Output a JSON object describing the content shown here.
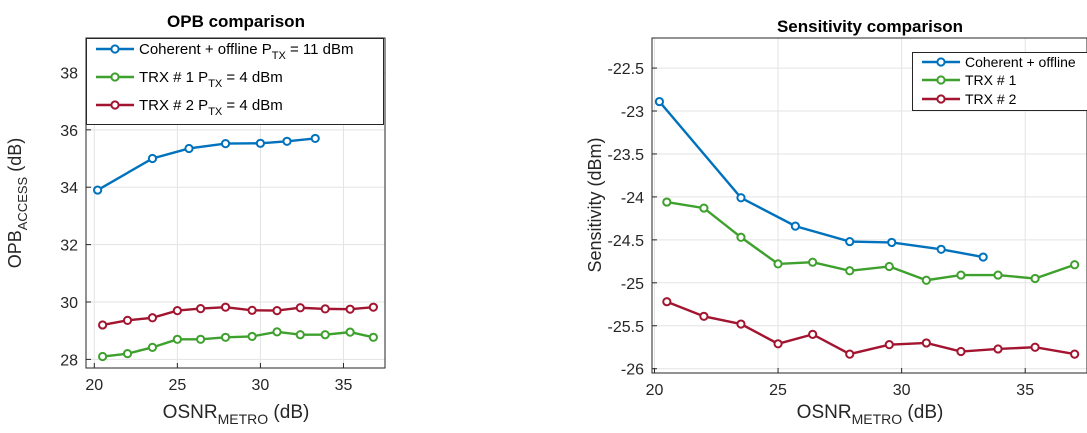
{
  "colors": {
    "blue": "#0072BD",
    "green": "#3EA02D",
    "red": "#A2142F"
  },
  "chart_data": [
    {
      "type": "line",
      "title": "OPB comparison",
      "xlabel": {
        "main": "OSNR",
        "sub": "METRO",
        "suffix": " (dB)"
      },
      "ylabel": {
        "main": "OPB",
        "sub": "ACCESS",
        "suffix": " (dB)"
      },
      "xlim": [
        19.5,
        37.5
      ],
      "ylim": [
        27.7,
        39.2
      ],
      "xticks": [
        "20",
        "25",
        "30",
        "35"
      ],
      "xtick_values": [
        20,
        25,
        30,
        35
      ],
      "yticks": [
        "28",
        "30",
        "32",
        "34",
        "36",
        "38"
      ],
      "ytick_values": [
        28,
        30,
        32,
        34,
        36,
        38
      ],
      "grid": true,
      "legend_position": "top-left",
      "series": [
        {
          "name": "Coherent + offline P",
          "name_sub": "TX",
          "name_suffix": " = 11 dBm",
          "color": "blue",
          "x": [
            20.2,
            23.5,
            25.7,
            27.9,
            30.0,
            31.6,
            33.3
          ],
          "y": [
            33.9,
            35.0,
            35.35,
            35.52,
            35.53,
            35.6,
            35.7
          ]
        },
        {
          "name": "TRX # 1 P",
          "name_sub": "TX",
          "name_suffix": " = 4 dBm",
          "color": "green",
          "x": [
            20.5,
            22.0,
            23.5,
            25.0,
            26.4,
            27.9,
            29.5,
            31.0,
            32.4,
            33.9,
            35.4,
            36.8
          ],
          "y": [
            28.1,
            28.2,
            28.42,
            28.7,
            28.7,
            28.77,
            28.8,
            28.96,
            28.86,
            28.86,
            28.95,
            28.77
          ]
        },
        {
          "name": "TRX # 2  P",
          "name_sub": "TX",
          "name_suffix": " = 4 dBm",
          "color": "red",
          "x": [
            20.5,
            22.0,
            23.5,
            25.0,
            26.4,
            27.9,
            29.5,
            31.0,
            32.4,
            33.9,
            35.4,
            36.8
          ],
          "y": [
            29.2,
            29.36,
            29.45,
            29.7,
            29.77,
            29.82,
            29.71,
            29.7,
            29.8,
            29.76,
            29.75,
            29.82
          ]
        }
      ]
    },
    {
      "type": "line",
      "title": "Sensitivity comparison",
      "xlabel": {
        "main": "OSNR",
        "sub": "METRO",
        "suffix": " (dB)"
      },
      "ylabel": {
        "main": "Sensitivity (dBm)",
        "sub": "",
        "suffix": ""
      },
      "xlim": [
        19.9,
        37.5
      ],
      "ylim": [
        -26.05,
        -22.15
      ],
      "xticks": [
        "20",
        "25",
        "30",
        "35"
      ],
      "xtick_values": [
        20,
        25,
        30,
        35
      ],
      "yticks": [
        "-22.5",
        "-23",
        "-23.5",
        "-24",
        "-24.5",
        "-25",
        "-25.5",
        "-26"
      ],
      "ytick_values": [
        -22.5,
        -23,
        -23.5,
        -24,
        -24.5,
        -25,
        -25.5,
        -26
      ],
      "grid": true,
      "legend_position": "top-right",
      "series": [
        {
          "name": "Coherent + offline",
          "name_sub": "",
          "name_suffix": "",
          "color": "blue",
          "x": [
            20.2,
            23.5,
            25.7,
            27.9,
            29.6,
            31.6,
            33.3
          ],
          "y": [
            -22.89,
            -24.01,
            -24.34,
            -24.52,
            -24.53,
            -24.61,
            -24.7
          ]
        },
        {
          "name": "TRX # 1",
          "name_sub": "",
          "name_suffix": "",
          "color": "green",
          "x": [
            20.5,
            22.0,
            23.5,
            25.0,
            26.4,
            27.9,
            29.5,
            31.0,
            32.4,
            33.9,
            35.4,
            37.0
          ],
          "y": [
            -24.06,
            -24.13,
            -24.47,
            -24.78,
            -24.76,
            -24.86,
            -24.81,
            -24.97,
            -24.91,
            -24.91,
            -24.95,
            -24.79
          ]
        },
        {
          "name": "TRX # 2",
          "name_sub": "",
          "name_suffix": "",
          "color": "red",
          "x": [
            20.5,
            22.0,
            23.5,
            25.0,
            26.4,
            27.9,
            29.5,
            31.0,
            32.4,
            33.9,
            35.4,
            37.0
          ],
          "y": [
            -25.22,
            -25.39,
            -25.48,
            -25.71,
            -25.6,
            -25.83,
            -25.72,
            -25.7,
            -25.8,
            -25.77,
            -25.75,
            -25.83
          ]
        }
      ]
    }
  ]
}
